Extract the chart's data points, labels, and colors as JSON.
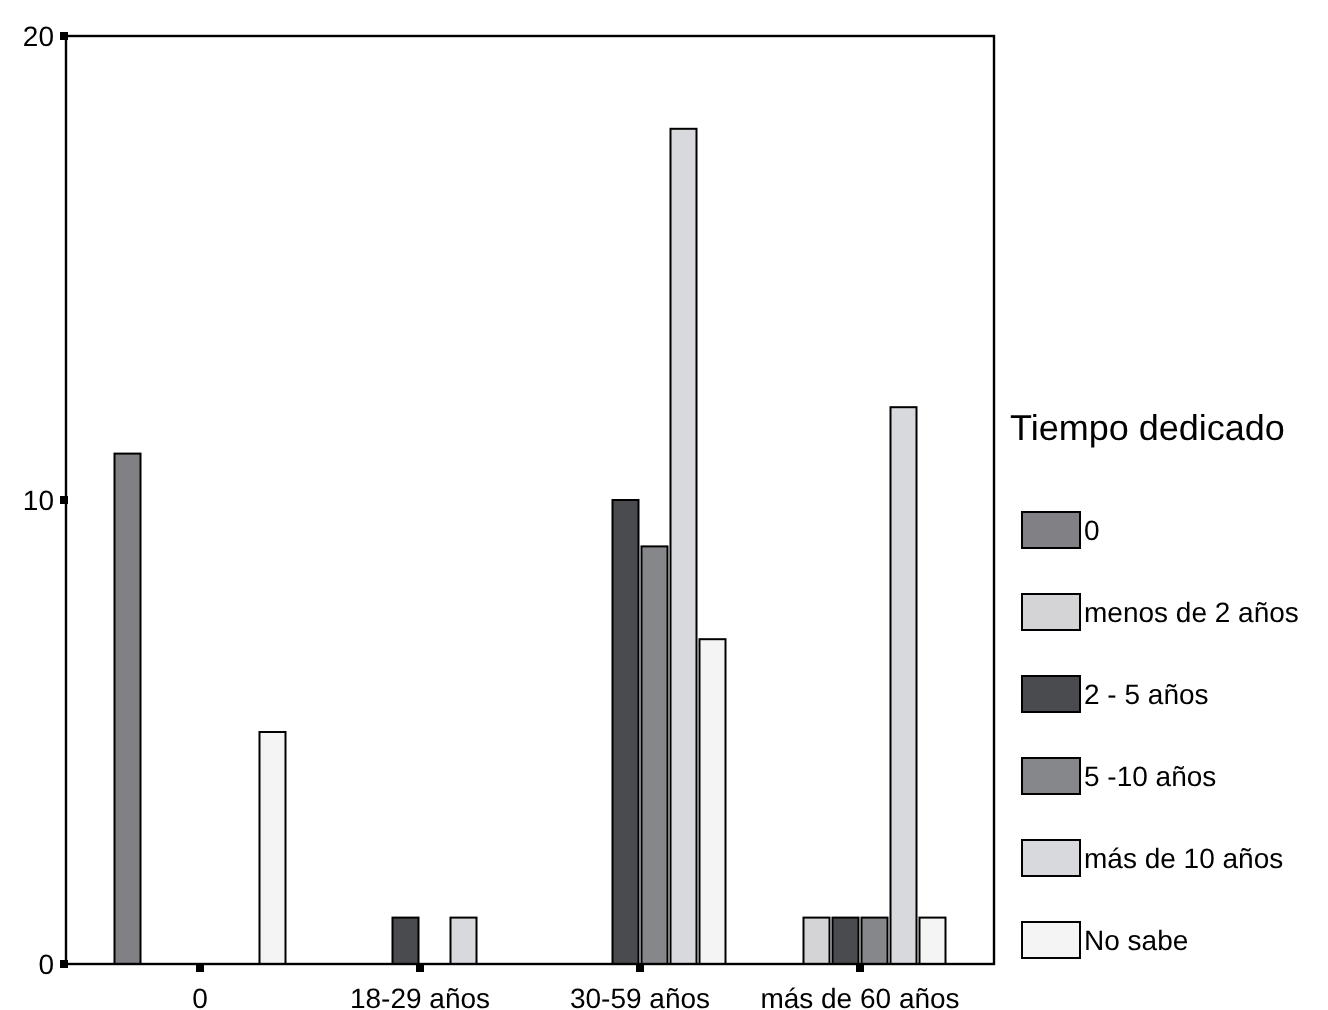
{
  "chart_data": {
    "type": "bar",
    "legend_title": "Tiempo dedicado",
    "categories": [
      "0",
      "18-29 años",
      "30-59 años",
      "más de 60 años"
    ],
    "series": [
      {
        "name": "0",
        "color": "#808085",
        "values": [
          11,
          null,
          null,
          null
        ]
      },
      {
        "name": "menos de 2 años",
        "color": "#d4d4d6",
        "values": [
          null,
          null,
          null,
          1
        ]
      },
      {
        "name": "2 - 5 años",
        "color": "#4a4b4e",
        "values": [
          null,
          1,
          10,
          1
        ]
      },
      {
        "name": "5 -10 años",
        "color": "#86878b",
        "values": [
          null,
          null,
          9,
          1
        ]
      },
      {
        "name": "más de 10 años",
        "color": "#d8d9dc",
        "values": [
          null,
          1,
          18,
          12
        ]
      },
      {
        "name": "No sabe",
        "color": "#f4f4f4",
        "values": [
          5,
          null,
          7,
          1
        ]
      }
    ],
    "ylim": [
      0,
      20
    ],
    "yticks": [
      0,
      10,
      20
    ],
    "grid": false,
    "legend": "right"
  }
}
